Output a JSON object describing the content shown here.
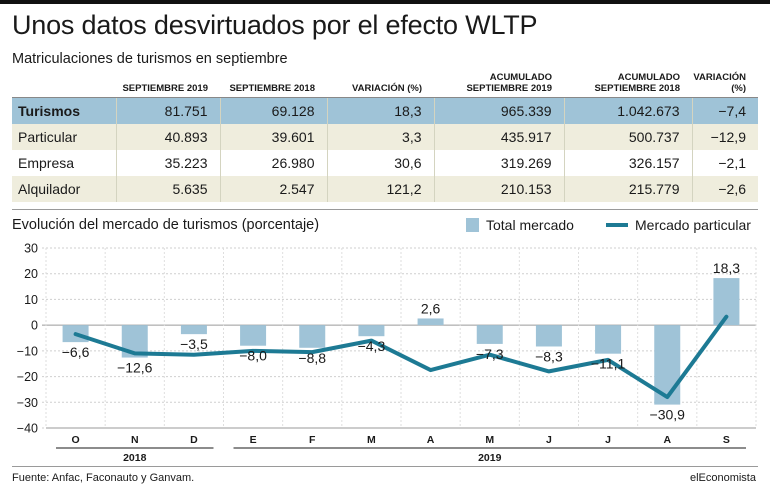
{
  "header": {
    "title": "Unos datos desvirtuados por el efecto WLTP",
    "subtitle": "Matriculaciones de turismos en septiembre"
  },
  "table": {
    "columns": [
      "",
      "SEPTIEMBRE 2019",
      "SEPTIEMBRE 2018",
      "VARIACIÓN (%)",
      "ACUMULADO SEPTIEMBRE 2019",
      "ACUMULADO SEPTIEMBRE 2018",
      "VARIACIÓN (%)"
    ],
    "rows": [
      [
        "Turismos",
        "81.751",
        "69.128",
        "18,3",
        "965.339",
        "1.042.673",
        "−7,4"
      ],
      [
        "Particular",
        "40.893",
        "39.601",
        "3,3",
        "435.917",
        "500.737",
        "−12,9"
      ],
      [
        "Empresa",
        "35.223",
        "26.980",
        "30,6",
        "319.269",
        "326.157",
        "−2,1"
      ],
      [
        "Alquilador",
        "5.635",
        "2.547",
        "121,2",
        "210.153",
        "215.779",
        "−2,6"
      ]
    ]
  },
  "chart_data": {
    "type": "bar",
    "title": "Evolución del mercado de  turismos (porcentaje)",
    "categories": [
      "O",
      "N",
      "D",
      "E",
      "F",
      "M",
      "A",
      "M",
      "J",
      "J",
      "A",
      "S"
    ],
    "years": [
      {
        "label": "2018",
        "from": 0,
        "to": 2
      },
      {
        "label": "2019",
        "from": 3,
        "to": 11
      }
    ],
    "series": [
      {
        "name": "Total mercado",
        "kind": "bar",
        "color": "#9fc3d7",
        "values": [
          -6.6,
          -12.6,
          -3.5,
          -8.0,
          -8.8,
          -4.3,
          2.6,
          -7.3,
          -8.3,
          -11.1,
          -30.9,
          18.3
        ],
        "labels": [
          "−6,6",
          "−12,6",
          "−3,5",
          "−8,0",
          "−8,8",
          "−4,3",
          "2,6",
          "−7,3",
          "−8,3",
          "−11,1",
          "−30,9",
          "18,3"
        ]
      },
      {
        "name": "Mercado particular",
        "kind": "line",
        "color": "#1d7a94",
        "values": [
          -3.5,
          -11,
          -11.5,
          -10,
          -10.5,
          -6,
          -17.5,
          -11.5,
          -18,
          -13.5,
          -28,
          3.3
        ]
      }
    ],
    "ylim": [
      -40,
      30
    ],
    "yticks": [
      30,
      20,
      10,
      0,
      -10,
      -20,
      -30,
      -40
    ],
    "grid": true,
    "legend": "top-right"
  },
  "footer": {
    "source": "Fuente: Anfac, Faconauto y Ganvam.",
    "brand": "elEconomista"
  }
}
